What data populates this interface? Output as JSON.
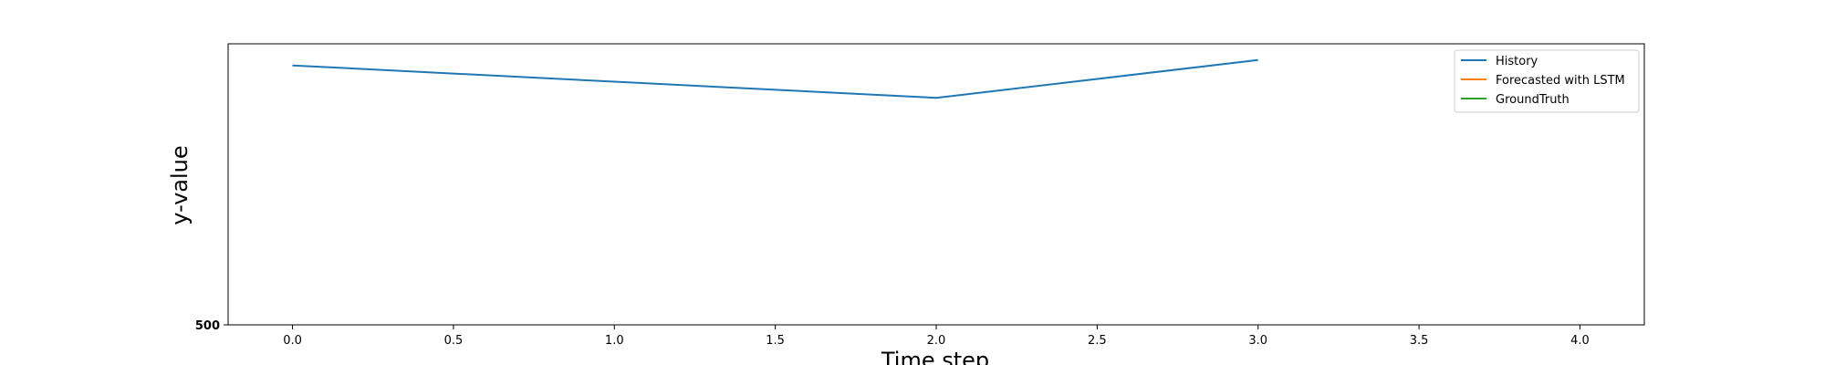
{
  "chart_data": {
    "type": "line",
    "title": "",
    "xlabel": "Time step",
    "ylabel": "y-value",
    "xlim": [
      -0.2,
      4.2
    ],
    "x_ticks": [
      "0.0",
      "0.5",
      "1.0",
      "1.5",
      "2.0",
      "2.5",
      "3.0",
      "3.5",
      "4.0"
    ],
    "y_tick_text": "500",
    "grid": false,
    "legend_position": "top-right",
    "series": [
      {
        "name": "History",
        "color": "#1f77b4",
        "x": [
          0,
          1,
          2,
          3
        ],
        "y": [
          240,
          225,
          210,
          245
        ]
      },
      {
        "name": "Forecasted with LSTM",
        "color": "#ff7f0e",
        "x": [],
        "y": []
      },
      {
        "name": "GroundTruth",
        "color": "#2ca02c",
        "x": [],
        "y": []
      }
    ]
  }
}
